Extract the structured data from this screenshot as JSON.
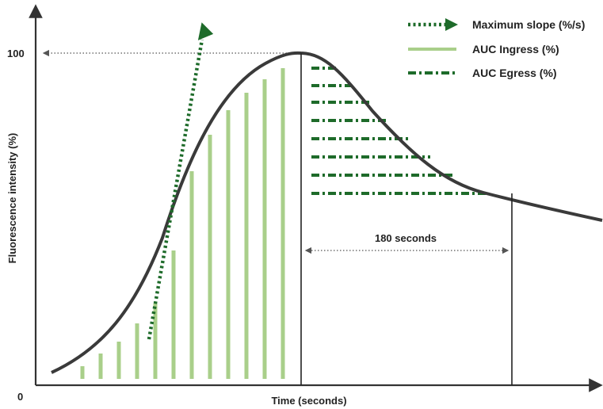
{
  "colors": {
    "axis": "#333333",
    "curve": "#3a3a3a",
    "slope": "#1e6b2a",
    "ingress": "#a9cf8a",
    "egress": "#1e6b2a",
    "guide": "#555555"
  },
  "legend": {
    "max_slope": "Maximum slope (%/s)",
    "auc_ingress": "AUC Ingress (%)",
    "auc_egress": "AUC Egress (%)"
  },
  "axes": {
    "y_label": "Fluorescence intensity (%)",
    "x_label": "Time (seconds)",
    "y_top_tick": "100",
    "origin": "0"
  },
  "annotations": {
    "duration": "180 seconds"
  }
}
